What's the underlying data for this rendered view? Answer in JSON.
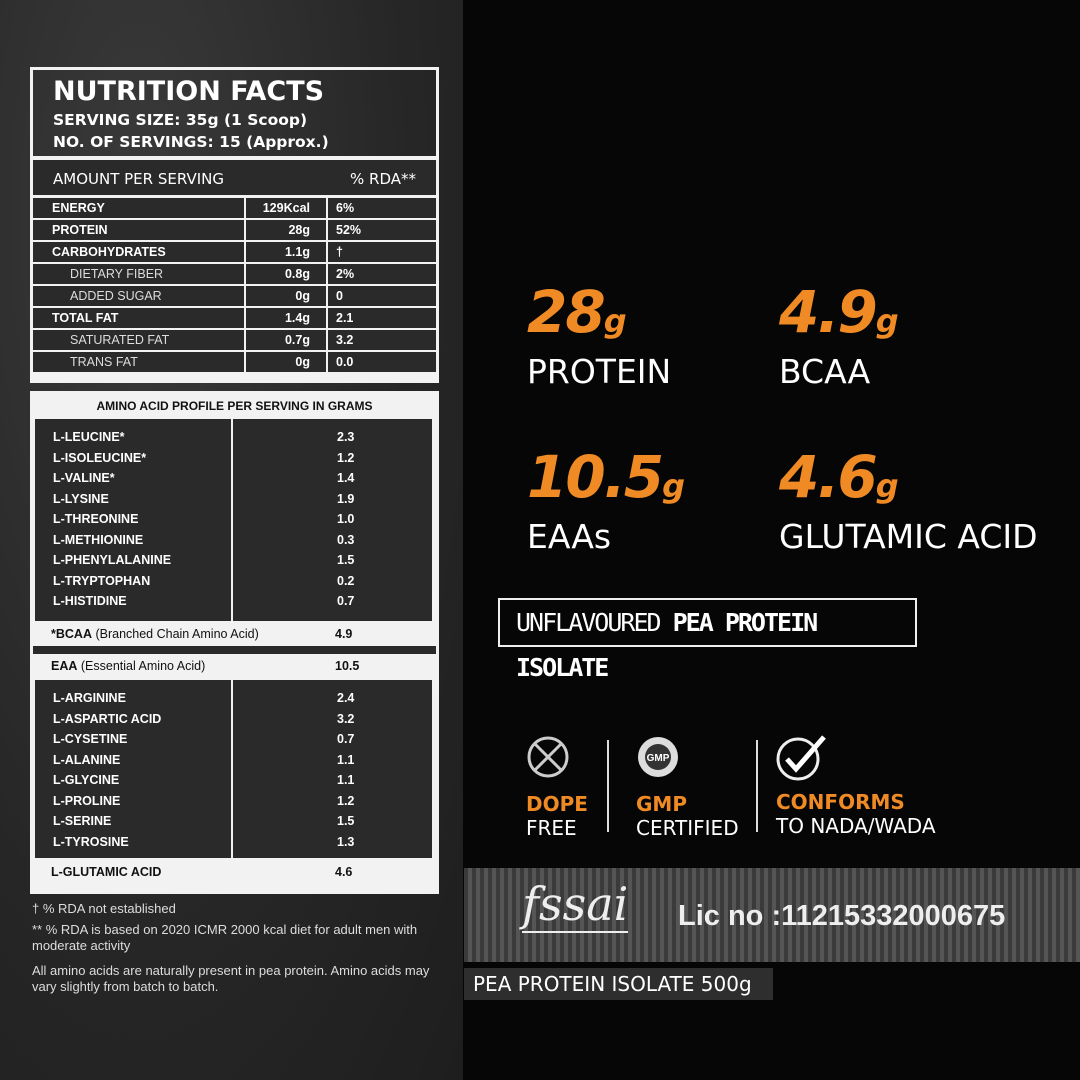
{
  "nutrition": {
    "title": "NUTRITION FACTS",
    "serving_size": "SERVING SIZE: 35g (1 Scoop)",
    "servings": "NO. OF SERVINGS: 15 (Approx.)",
    "header_left": "AMOUNT PER SERVING",
    "header_right": "% RDA**",
    "rows": [
      {
        "name": "ENERGY",
        "amount": "129Kcal",
        "rda": "6%"
      },
      {
        "name": "PROTEIN",
        "amount": "28g",
        "rda": "52%"
      },
      {
        "name": "CARBOHYDRATES",
        "amount": "1.1g",
        "rda": "†"
      },
      {
        "name": "DIETARY FIBER",
        "amount": "0.8g",
        "rda": "2%"
      },
      {
        "name": "ADDED SUGAR",
        "amount": "0g",
        "rda": "0"
      },
      {
        "name": "TOTAL FAT",
        "amount": "1.4g",
        "rda": "2.1"
      },
      {
        "name": "SATURATED FAT",
        "amount": "0.7g",
        "rda": "3.2"
      },
      {
        "name": "TRANS FAT",
        "amount": "0g",
        "rda": "0.0"
      }
    ]
  },
  "amino": {
    "title": "AMINO ACID PROFILE PER SERVING IN GRAMS",
    "group1": [
      {
        "name": "L-LEUCINE*",
        "value": "2.3"
      },
      {
        "name": "L-ISOLEUCINE*",
        "value": "1.2"
      },
      {
        "name": "L-VALINE*",
        "value": "1.4"
      },
      {
        "name": "L-LYSINE",
        "value": "1.9"
      },
      {
        "name": "L-THREONINE",
        "value": "1.0"
      },
      {
        "name": "L-METHIONINE",
        "value": "0.3"
      },
      {
        "name": "L-PHENYLALANINE",
        "value": "1.5"
      },
      {
        "name": "L-TRYPTOPHAN",
        "value": "0.2"
      },
      {
        "name": "L-HISTIDINE",
        "value": "0.7"
      }
    ],
    "bcaa": {
      "abbr": "*BCAA",
      "desc": " (Branched Chain Amino Acid)",
      "value": "4.9"
    },
    "eaa": {
      "abbr": "EAA",
      "desc": " (Essential Amino Acid)",
      "value": "10.5"
    },
    "group2": [
      {
        "name": "L-ARGININE",
        "value": "2.4"
      },
      {
        "name": "L-ASPARTIC ACID",
        "value": "3.2"
      },
      {
        "name": "L-CYSETINE",
        "value": "0.7"
      },
      {
        "name": "L-ALANINE",
        "value": "1.1"
      },
      {
        "name": "L-GLYCINE",
        "value": "1.1"
      },
      {
        "name": "L-PROLINE",
        "value": "1.2"
      },
      {
        "name": "L-SERINE",
        "value": "1.5"
      },
      {
        "name": "L-TYROSINE",
        "value": "1.3"
      }
    ],
    "glutamic": {
      "name": "L-GLUTAMIC ACID",
      "value": "4.6"
    }
  },
  "footnotes": [
    "† % RDA not established",
    "** % RDA is based on 2020 ICMR 2000 kcal diet for adult men with moderate activity",
    "All amino acids are naturally present in pea protein. Amino acids may vary slightly from batch to batch."
  ],
  "highlights": [
    {
      "value": "28",
      "unit": "g",
      "label": "PROTEIN"
    },
    {
      "value": "4.9",
      "unit": "g",
      "label": "BCAA"
    },
    {
      "value": "10.5",
      "unit": "g",
      "label": "EAAs"
    },
    {
      "value": "4.6",
      "unit": "g",
      "label": "GLUTAMIC ACID"
    }
  ],
  "flavour": {
    "light": "UNFLAVOURED ",
    "bold": "PEA PROTEIN ISOLATE"
  },
  "badges": [
    {
      "icon": "no-syringe-icon",
      "top": "DOPE",
      "bottom": "FREE"
    },
    {
      "icon": "gmp-seal-icon",
      "top": "GMP",
      "bottom": "CERTIFIED"
    },
    {
      "icon": "check-circle-icon",
      "top": "CONFORMS",
      "bottom": "TO NADA/WADA"
    }
  ],
  "fssai": {
    "logo": "fssai",
    "license": "Lic no :11215332000675"
  },
  "product": "PEA PROTEIN ISOLATE 500g",
  "colors": {
    "accent": "#f08a24",
    "left_bg": "#2a2a2a",
    "right_bg": "#060606"
  }
}
